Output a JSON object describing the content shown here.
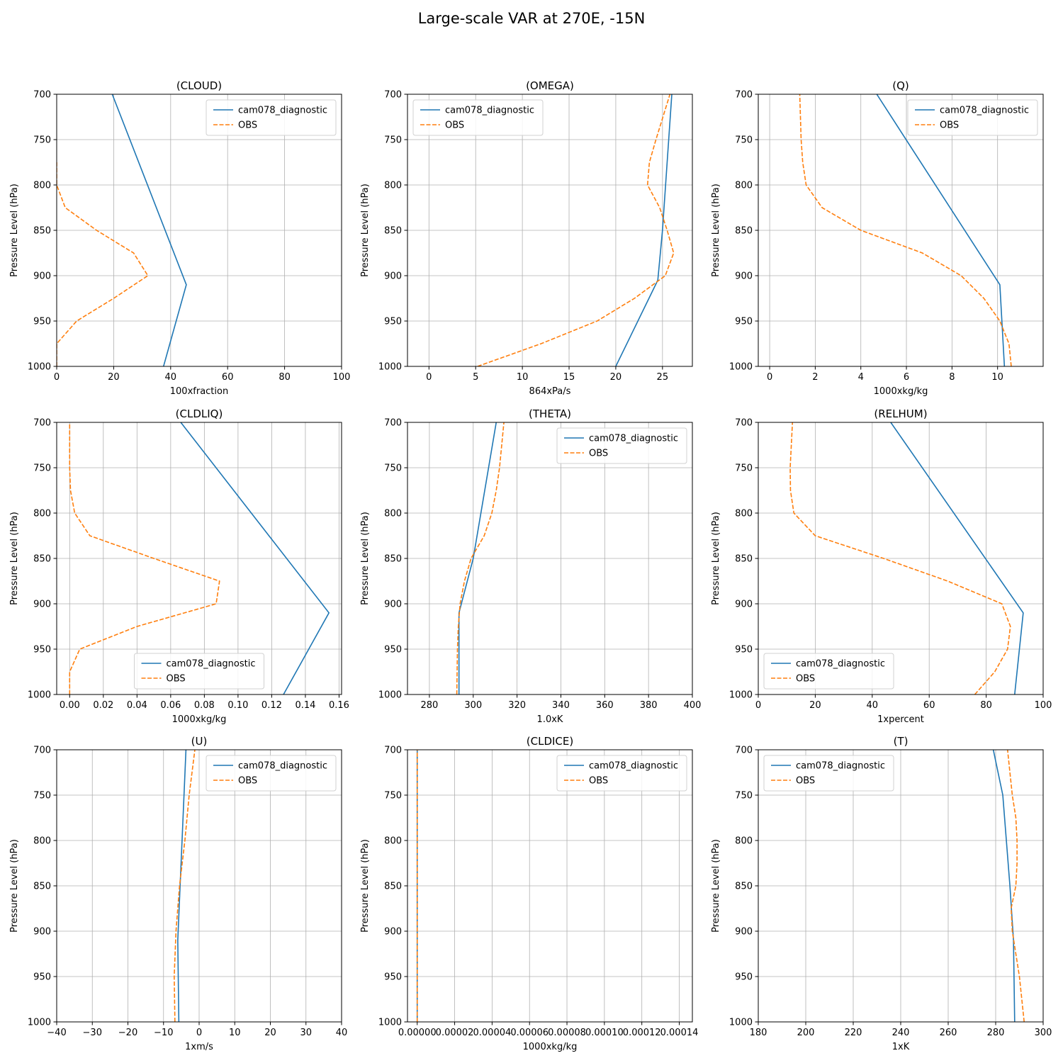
{
  "figure": {
    "title": "Large-scale VAR at 270E, -15N",
    "ylabel": "Pressure Level (hPa)",
    "colors": {
      "model": "#1f77b4",
      "obs": "#ff7f0e",
      "grid": "#b0b0b0"
    }
  },
  "chart_data": [
    {
      "type": "line",
      "title": "(CLOUD)",
      "xlabel": "100xfraction",
      "ylabel": "Pressure Level (hPa)",
      "xlim": [
        0,
        100
      ],
      "ylim": [
        1000,
        700
      ],
      "grid": true,
      "legend": "upper right",
      "xticks": [
        0,
        20,
        40,
        60,
        80,
        100
      ],
      "yticks": [
        700,
        750,
        800,
        850,
        900,
        950,
        1000
      ],
      "series": [
        {
          "name": "cam078_diagnostic",
          "style": "solid",
          "points": [
            [
              37.5,
              1000
            ],
            [
              45.5,
              910
            ],
            [
              19.5,
              700
            ]
          ]
        },
        {
          "name": "OBS",
          "style": "dashed",
          "points": [
            [
              0,
              1000
            ],
            [
              0,
              975
            ],
            [
              7,
              950
            ],
            [
              20,
              925
            ],
            [
              32,
              900
            ],
            [
              27,
              875
            ],
            [
              14,
              850
            ],
            [
              3,
              825
            ],
            [
              0,
              800
            ],
            [
              0,
              775
            ]
          ]
        }
      ]
    },
    {
      "type": "line",
      "title": "(OMEGA)",
      "xlabel": "864xPa/s",
      "ylabel": "Pressure Level (hPa)",
      "xlim": [
        -2.3,
        28.2
      ],
      "ylim": [
        1000,
        700
      ],
      "grid": true,
      "legend": "upper left",
      "xticks": [
        0,
        5,
        10,
        15,
        20,
        25
      ],
      "yticks": [
        700,
        750,
        800,
        850,
        900,
        950,
        1000
      ],
      "series": [
        {
          "name": "cam078_diagnostic",
          "style": "solid",
          "points": [
            [
              20,
              1000
            ],
            [
              24.5,
              905
            ],
            [
              25,
              850
            ],
            [
              26,
              700
            ]
          ]
        },
        {
          "name": "OBS",
          "style": "dashed",
          "points": [
            [
              5.2,
              1000
            ],
            [
              12,
              975
            ],
            [
              18,
              950
            ],
            [
              22,
              925
            ],
            [
              25.3,
              900
            ],
            [
              26.2,
              875
            ],
            [
              25.5,
              850
            ],
            [
              24.7,
              825
            ],
            [
              23.4,
              800
            ],
            [
              23.6,
              775
            ],
            [
              24.3,
              750
            ],
            [
              25.8,
              700
            ]
          ]
        }
      ]
    },
    {
      "type": "line",
      "title": "(Q)",
      "xlabel": "1000xkg/kg",
      "ylabel": "Pressure Level (hPa)",
      "xlim": [
        -0.5,
        12
      ],
      "ylim": [
        1000,
        700
      ],
      "grid": true,
      "legend": "upper right",
      "xticks": [
        0,
        2,
        4,
        6,
        8,
        10
      ],
      "yticks": [
        700,
        750,
        800,
        850,
        900,
        950,
        1000
      ],
      "series": [
        {
          "name": "cam078_diagnostic",
          "style": "solid",
          "points": [
            [
              10.3,
              1000
            ],
            [
              10.1,
              910
            ],
            [
              4.7,
              700
            ]
          ]
        },
        {
          "name": "OBS",
          "style": "dashed",
          "points": [
            [
              10.6,
              1000
            ],
            [
              10.5,
              975
            ],
            [
              10.1,
              950
            ],
            [
              9.4,
              925
            ],
            [
              8.4,
              900
            ],
            [
              6.7,
              875
            ],
            [
              4.0,
              850
            ],
            [
              2.3,
              825
            ],
            [
              1.6,
              800
            ],
            [
              1.45,
              775
            ],
            [
              1.38,
              750
            ],
            [
              1.32,
              700
            ]
          ]
        }
      ]
    },
    {
      "type": "line",
      "title": "(CLDLIQ)",
      "xlabel": "1000xkg/kg",
      "ylabel": "Pressure Level (hPa)",
      "xlim": [
        -0.0077,
        0.1615
      ],
      "ylim": [
        1000,
        700
      ],
      "grid": true,
      "legend": "lower center",
      "xticks": [
        0.0,
        0.02,
        0.04,
        0.06,
        0.08,
        0.1,
        0.12,
        0.14,
        0.16
      ],
      "yticks": [
        700,
        750,
        800,
        850,
        900,
        950,
        1000
      ],
      "series": [
        {
          "name": "cam078_diagnostic",
          "style": "solid",
          "points": [
            [
              0.127,
              1000
            ],
            [
              0.154,
              910
            ],
            [
              0.066,
              700
            ]
          ]
        },
        {
          "name": "OBS",
          "style": "dashed",
          "points": [
            [
              0,
              1000
            ],
            [
              0,
              975
            ],
            [
              0.006,
              950
            ],
            [
              0.04,
              925
            ],
            [
              0.087,
              900
            ],
            [
              0.089,
              875
            ],
            [
              0.05,
              850
            ],
            [
              0.012,
              825
            ],
            [
              0.003,
              800
            ],
            [
              0.0005,
              775
            ],
            [
              0,
              750
            ],
            [
              0,
              700
            ]
          ]
        }
      ]
    },
    {
      "type": "line",
      "title": "(THETA)",
      "xlabel": "1.0xK",
      "ylabel": "Pressure Level (hPa)",
      "xlim": [
        270,
        400
      ],
      "ylim": [
        1000,
        700
      ],
      "grid": true,
      "legend": "upper right",
      "xticks": [
        280,
        300,
        320,
        340,
        360,
        380,
        400
      ],
      "yticks": [
        700,
        750,
        800,
        850,
        900,
        950,
        1000
      ],
      "series": [
        {
          "name": "cam078_diagnostic",
          "style": "solid",
          "points": [
            [
              293.5,
              1000
            ],
            [
              293.5,
              910
            ],
            [
              300,
              850
            ],
            [
              310.5,
              700
            ]
          ]
        },
        {
          "name": "OBS",
          "style": "dashed",
          "points": [
            [
              292.5,
              1000
            ],
            [
              292.8,
              950
            ],
            [
              293.2,
              925
            ],
            [
              294,
              900
            ],
            [
              296,
              875
            ],
            [
              299,
              850
            ],
            [
              305,
              825
            ],
            [
              308.5,
              800
            ],
            [
              310.5,
              775
            ],
            [
              312,
              750
            ],
            [
              314,
              700
            ]
          ]
        }
      ]
    },
    {
      "type": "line",
      "title": "(RELHUM)",
      "xlabel": "1xpercent",
      "ylabel": "Pressure Level (hPa)",
      "xlim": [
        0,
        100
      ],
      "ylim": [
        1000,
        700
      ],
      "grid": true,
      "legend": "lower left",
      "xticks": [
        0,
        20,
        40,
        60,
        80,
        100
      ],
      "yticks": [
        700,
        750,
        800,
        850,
        900,
        950,
        1000
      ],
      "series": [
        {
          "name": "cam078_diagnostic",
          "style": "solid",
          "points": [
            [
              90,
              1000
            ],
            [
              93,
              910
            ],
            [
              46.5,
              700
            ]
          ]
        },
        {
          "name": "OBS",
          "style": "dashed",
          "points": [
            [
              76,
              1000
            ],
            [
              83,
              975
            ],
            [
              87.5,
              950
            ],
            [
              88.5,
              925
            ],
            [
              85.5,
              900
            ],
            [
              66.5,
              875
            ],
            [
              44,
              850
            ],
            [
              20,
              825
            ],
            [
              12.5,
              800
            ],
            [
              11.3,
              775
            ],
            [
              11.2,
              750
            ],
            [
              12,
              700
            ]
          ]
        }
      ]
    },
    {
      "type": "line",
      "title": "(U)",
      "xlabel": "1xm/s",
      "ylabel": "Pressure Level (hPa)",
      "xlim": [
        -40,
        40
      ],
      "ylim": [
        1000,
        700
      ],
      "grid": true,
      "legend": "upper right",
      "xticks": [
        -40,
        -30,
        -20,
        -10,
        0,
        10,
        20,
        30,
        40
      ],
      "yticks": [
        700,
        750,
        800,
        850,
        900,
        950,
        1000
      ],
      "series": [
        {
          "name": "cam078_diagnostic",
          "style": "solid",
          "points": [
            [
              -5.7,
              1000
            ],
            [
              -6.0,
              910
            ],
            [
              -3.7,
              700
            ]
          ]
        },
        {
          "name": "OBS",
          "style": "dashed",
          "points": [
            [
              -6.8,
              1000
            ],
            [
              -7.0,
              950
            ],
            [
              -6.5,
              900
            ],
            [
              -5.5,
              850
            ],
            [
              -4.0,
              800
            ],
            [
              -2.8,
              750
            ],
            [
              -1.2,
              700
            ]
          ]
        }
      ]
    },
    {
      "type": "line",
      "title": "(CLDICE)",
      "xlabel": "1000xkg/kg",
      "ylabel": "Pressure Level (hPa)",
      "xlim": [
        -5.2e-06,
        0.000147
      ],
      "ylim": [
        1000,
        700
      ],
      "grid": true,
      "legend": "upper right",
      "xticks": [
        0.0,
        2e-05,
        4e-05,
        6e-05,
        8e-05,
        0.0001,
        0.00012,
        0.00014
      ],
      "xtick_labels": [
        "0.00000",
        "0.00002",
        "0.00004",
        "0.00006",
        "0.00008",
        "0.00010",
        "0.00012",
        "0.00014"
      ],
      "yticks": [
        700,
        750,
        800,
        850,
        900,
        950,
        1000
      ],
      "series": [
        {
          "name": "cam078_diagnostic",
          "style": "solid",
          "points": [
            [
              0,
              1000
            ],
            [
              0,
              700
            ]
          ]
        },
        {
          "name": "OBS",
          "style": "dashed",
          "points": [
            [
              0,
              1000
            ],
            [
              0,
              700
            ]
          ]
        }
      ]
    },
    {
      "type": "line",
      "title": "(T)",
      "xlabel": "1xK",
      "ylabel": "Pressure Level (hPa)",
      "xlim": [
        180,
        300
      ],
      "ylim": [
        1000,
        700
      ],
      "grid": true,
      "legend": "upper left",
      "xticks": [
        180,
        200,
        220,
        240,
        260,
        280,
        300
      ],
      "yticks": [
        700,
        750,
        800,
        850,
        900,
        950,
        1000
      ],
      "series": [
        {
          "name": "cam078_diagnostic",
          "style": "solid",
          "points": [
            [
              288,
              1000
            ],
            [
              287.5,
              910
            ],
            [
              286,
              850
            ],
            [
              283,
              750
            ],
            [
              279,
              700
            ]
          ]
        },
        {
          "name": "OBS",
          "style": "dashed",
          "points": [
            [
              292,
              1000
            ],
            [
              290,
              950
            ],
            [
              287,
              900
            ],
            [
              286.5,
              875
            ],
            [
              288.5,
              850
            ],
            [
              289,
              825
            ],
            [
              289,
              800
            ],
            [
              288.5,
              775
            ],
            [
              287,
              750
            ],
            [
              285,
              700
            ]
          ]
        }
      ]
    }
  ]
}
